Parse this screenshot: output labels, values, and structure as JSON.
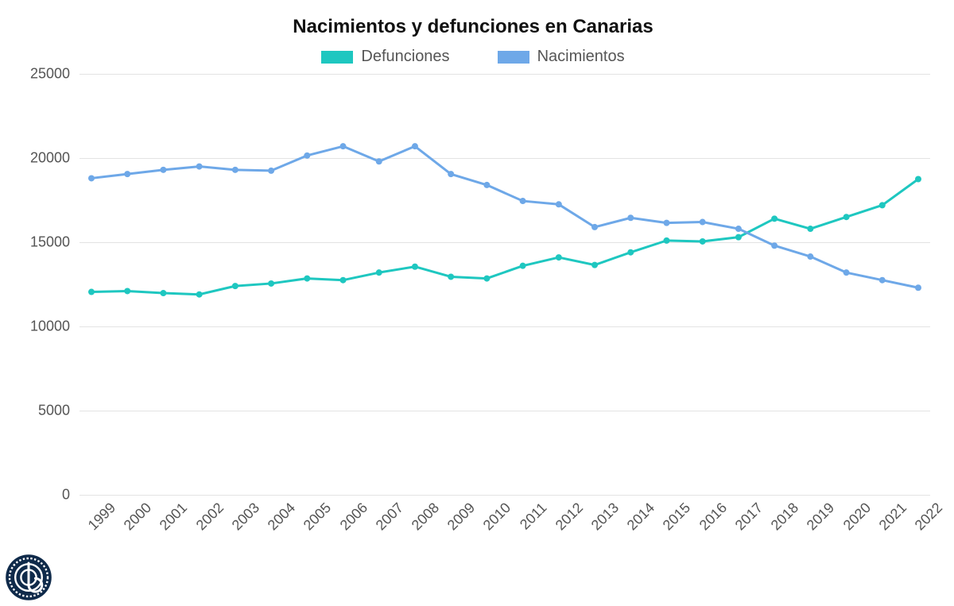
{
  "chart": {
    "type": "line",
    "title": "Nacimientos y defunciones en Canarias",
    "title_fontsize": 24,
    "title_color": "#111111",
    "background_color": "#ffffff",
    "grid_color": "#e3e3e3",
    "axis_text_color": "#555555",
    "axis_fontsize": 18,
    "legend_fontsize": 20,
    "line_width": 3,
    "marker_radius": 4,
    "ylim": [
      0,
      25000
    ],
    "ytick_step": 5000,
    "yticks": [
      0,
      5000,
      10000,
      15000,
      20000,
      25000
    ],
    "categories": [
      "1999",
      "2000",
      "2001",
      "2002",
      "2003",
      "2004",
      "2005",
      "2006",
      "2007",
      "2008",
      "2009",
      "2010",
      "2011",
      "2012",
      "2013",
      "2014",
      "2015",
      "2016",
      "2017",
      "2018",
      "2019",
      "2020",
      "2021",
      "2022"
    ],
    "series": [
      {
        "name": "Defunciones",
        "color": "#1ec7c0",
        "values": [
          12050,
          12100,
          11980,
          11900,
          12400,
          12550,
          12850,
          12750,
          13200,
          13550,
          12950,
          12850,
          13600,
          14100,
          13650,
          14400,
          15100,
          15050,
          15300,
          16400,
          15800,
          16500,
          17200,
          18750
        ]
      },
      {
        "name": "Nacimientos",
        "color": "#6ea8e8",
        "values": [
          18800,
          19050,
          19300,
          19500,
          19300,
          19250,
          20150,
          20700,
          19800,
          20700,
          19050,
          18400,
          17450,
          17250,
          15900,
          16450,
          16150,
          16200,
          15800,
          14800,
          14150,
          13200,
          12750,
          12300
        ]
      }
    ]
  },
  "logo_color": "#0f2a4a"
}
